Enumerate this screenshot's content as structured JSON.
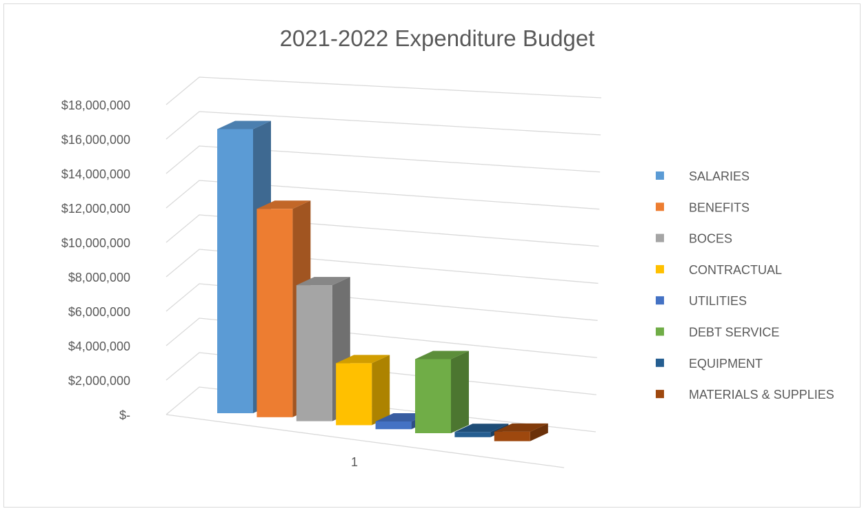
{
  "chart_data": {
    "type": "bar",
    "title": "2021-2022 Expenditure Budget",
    "categories": [
      "1"
    ],
    "y_tick_labels": [
      "$-",
      "$2,000,000",
      "$4,000,000",
      "$6,000,000",
      "$8,000,000",
      "$10,000,000",
      "$12,000,000",
      "$14,000,000",
      "$16,000,000",
      "$18,000,000"
    ],
    "ylim": [
      0,
      18000000
    ],
    "grid": true,
    "legend_position": "right",
    "three_d": true,
    "series": [
      {
        "name": "SALARIES",
        "values": [
          16500000
        ],
        "color": "#5B9BD5"
      },
      {
        "name": "BENEFITS",
        "values": [
          12100000
        ],
        "color": "#ED7D31"
      },
      {
        "name": "BOCES",
        "values": [
          7900000
        ],
        "color": "#A5A5A5"
      },
      {
        "name": "CONTRACTUAL",
        "values": [
          3600000
        ],
        "color": "#FFC000"
      },
      {
        "name": "UTILITIES",
        "values": [
          450000
        ],
        "color": "#4472C4"
      },
      {
        "name": "DEBT SERVICE",
        "values": [
          4300000
        ],
        "color": "#70AD47"
      },
      {
        "name": "EQUIPMENT",
        "values": [
          300000
        ],
        "color": "#255E91"
      },
      {
        "name": "MATERIALS & SUPPLIES",
        "values": [
          550000
        ],
        "color": "#9E480E"
      }
    ]
  }
}
